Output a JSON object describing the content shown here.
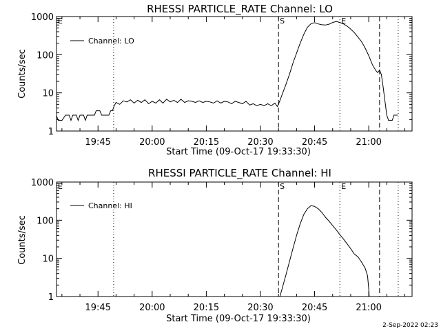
{
  "stamp": "2-Sep-2022 02:23",
  "chart_data": [
    {
      "type": "line",
      "title": "RHESSI PARTICLE_RATE Channel: LO",
      "xlabel": "Start Time (09-Oct-17 19:33:30)",
      "ylabel": "Counts/sec",
      "yscale": "log",
      "ylim": [
        1,
        1000
      ],
      "xlim": [
        "19:33:30",
        "21:12:00"
      ],
      "x_ticks": [
        "19:45",
        "20:00",
        "20:15",
        "20:30",
        "20:45",
        "21:00"
      ],
      "y_ticks": [
        "1",
        "10",
        "100",
        "1000"
      ],
      "legend": "top-left",
      "line_color": "#000000",
      "markers": [
        {
          "time": "19:33:30",
          "label": "E",
          "style": "dotted"
        },
        {
          "time": "19:49:20",
          "label": "",
          "style": "dotted"
        },
        {
          "time": "20:35:00",
          "label": "S",
          "style": "dashed"
        },
        {
          "time": "20:52:00",
          "label": "E",
          "style": "dotted"
        },
        {
          "time": "21:03:00",
          "label": "",
          "style": "dashed"
        },
        {
          "time": "21:08:10",
          "label": "",
          "style": "dotted"
        }
      ],
      "series": [
        {
          "name": "Channel: LO",
          "points": [
            [
              "19:33:30",
              2.5
            ],
            [
              "19:34:00",
              1.9
            ],
            [
              "19:35:00",
              1.9
            ],
            [
              "19:36:00",
              2.6
            ],
            [
              "19:37:00",
              2.6
            ],
            [
              "19:37:30",
              1.9
            ],
            [
              "19:38:00",
              2.6
            ],
            [
              "19:39:00",
              2.6
            ],
            [
              "19:39:30",
              1.9
            ],
            [
              "19:40:00",
              2.6
            ],
            [
              "19:41:00",
              2.6
            ],
            [
              "19:41:30",
              1.9
            ],
            [
              "19:42:00",
              2.6
            ],
            [
              "19:43:00",
              2.6
            ],
            [
              "19:44:00",
              2.6
            ],
            [
              "19:44:30",
              3.4
            ],
            [
              "19:45:30",
              3.4
            ],
            [
              "19:46:00",
              2.6
            ],
            [
              "19:47:00",
              2.6
            ],
            [
              "19:48:00",
              2.6
            ],
            [
              "19:48:30",
              3.4
            ],
            [
              "19:49:00",
              3.4
            ],
            [
              "19:49:30",
              4.6
            ],
            [
              "19:50:00",
              5.6
            ],
            [
              "19:51:00",
              5.0
            ],
            [
              "19:52:00",
              6.2
            ],
            [
              "19:53:00",
              5.8
            ],
            [
              "19:54:00",
              6.6
            ],
            [
              "19:55:00",
              5.4
            ],
            [
              "19:56:00",
              6.4
            ],
            [
              "19:57:00",
              5.6
            ],
            [
              "19:58:00",
              6.6
            ],
            [
              "19:59:00",
              5.2
            ],
            [
              "20:00:00",
              6.0
            ],
            [
              "20:01:00",
              5.4
            ],
            [
              "20:02:00",
              6.6
            ],
            [
              "20:03:00",
              5.4
            ],
            [
              "20:04:00",
              6.8
            ],
            [
              "20:05:00",
              5.8
            ],
            [
              "20:06:00",
              6.4
            ],
            [
              "20:07:00",
              5.6
            ],
            [
              "20:08:00",
              6.8
            ],
            [
              "20:09:00",
              5.6
            ],
            [
              "20:10:00",
              6.2
            ],
            [
              "20:11:00",
              6.0
            ],
            [
              "20:12:00",
              5.6
            ],
            [
              "20:13:00",
              6.2
            ],
            [
              "20:14:00",
              5.6
            ],
            [
              "20:15:00",
              6.0
            ],
            [
              "20:16:00",
              5.8
            ],
            [
              "20:17:00",
              5.4
            ],
            [
              "20:18:00",
              6.2
            ],
            [
              "20:19:00",
              5.4
            ],
            [
              "20:20:00",
              6.0
            ],
            [
              "20:21:00",
              5.8
            ],
            [
              "20:22:00",
              5.2
            ],
            [
              "20:23:00",
              6.0
            ],
            [
              "20:24:00",
              5.6
            ],
            [
              "20:25:00",
              5.2
            ],
            [
              "20:26:00",
              6.0
            ],
            [
              "20:27:00",
              4.8
            ],
            [
              "20:28:00",
              5.2
            ],
            [
              "20:29:00",
              4.6
            ],
            [
              "20:30:00",
              5.0
            ],
            [
              "20:31:00",
              4.6
            ],
            [
              "20:32:00",
              5.2
            ],
            [
              "20:33:00",
              4.6
            ],
            [
              "20:34:00",
              5.4
            ],
            [
              "20:34:40",
              4.4
            ],
            [
              "20:35:00",
              5.0
            ],
            [
              "20:36:00",
              9.0
            ],
            [
              "20:37:00",
              16
            ],
            [
              "20:38:00",
              30
            ],
            [
              "20:39:00",
              60
            ],
            [
              "20:40:00",
              110
            ],
            [
              "20:41:00",
              200
            ],
            [
              "20:42:00",
              340
            ],
            [
              "20:43:00",
              520
            ],
            [
              "20:44:00",
              650
            ],
            [
              "20:45:00",
              690
            ],
            [
              "20:46:00",
              640
            ],
            [
              "20:47:00",
              610
            ],
            [
              "20:48:00",
              600
            ],
            [
              "20:49:00",
              630
            ],
            [
              "20:50:00",
              700
            ],
            [
              "20:51:00",
              740
            ],
            [
              "20:52:00",
              700
            ],
            [
              "20:53:00",
              640
            ],
            [
              "20:54:00",
              560
            ],
            [
              "20:55:00",
              470
            ],
            [
              "20:56:00",
              380
            ],
            [
              "20:57:00",
              290
            ],
            [
              "20:58:00",
              220
            ],
            [
              "20:59:00",
              150
            ],
            [
              "21:00:00",
              95
            ],
            [
              "21:01:00",
              55
            ],
            [
              "21:02:00",
              38
            ],
            [
              "21:02:30",
              34
            ],
            [
              "21:03:00",
              40
            ],
            [
              "21:03:30",
              30
            ],
            [
              "21:04:00",
              14
            ],
            [
              "21:04:30",
              6
            ],
            [
              "21:05:00",
              2.6
            ],
            [
              "21:05:30",
              1.9
            ],
            [
              "21:06:30",
              1.9
            ],
            [
              "21:07:00",
              2.6
            ],
            [
              "21:08:00",
              2.6
            ]
          ]
        }
      ]
    },
    {
      "type": "line",
      "title": "RHESSI PARTICLE_RATE Channel: HI",
      "xlabel": "Start Time (09-Oct-17 19:33:30)",
      "ylabel": "Counts/sec",
      "yscale": "log",
      "ylim": [
        1,
        1000
      ],
      "xlim": [
        "19:33:30",
        "21:12:00"
      ],
      "x_ticks": [
        "19:45",
        "20:00",
        "20:15",
        "20:30",
        "20:45",
        "21:00"
      ],
      "y_ticks": [
        "1",
        "10",
        "100",
        "1000"
      ],
      "legend": "top-left",
      "line_color": "#000000",
      "markers": [
        {
          "time": "19:33:30",
          "label": "E",
          "style": "dotted"
        },
        {
          "time": "19:49:20",
          "label": "",
          "style": "dotted"
        },
        {
          "time": "20:35:00",
          "label": "S",
          "style": "dashed"
        },
        {
          "time": "20:52:00",
          "label": "E",
          "style": "dotted"
        },
        {
          "time": "21:03:00",
          "label": "",
          "style": "dashed"
        },
        {
          "time": "21:08:10",
          "label": "",
          "style": "dotted"
        }
      ],
      "series": [
        {
          "name": "Channel: HI",
          "points": [
            [
              "20:35:15",
              0.9
            ],
            [
              "20:36:00",
              1.6
            ],
            [
              "20:37:00",
              3.5
            ],
            [
              "20:38:00",
              8
            ],
            [
              "20:39:00",
              18
            ],
            [
              "20:40:00",
              40
            ],
            [
              "20:41:00",
              80
            ],
            [
              "20:42:00",
              140
            ],
            [
              "20:43:00",
              200
            ],
            [
              "20:44:00",
              240
            ],
            [
              "20:45:00",
              230
            ],
            [
              "20:46:00",
              200
            ],
            [
              "20:47:00",
              160
            ],
            [
              "20:48:00",
              120
            ],
            [
              "20:49:00",
              95
            ],
            [
              "20:50:00",
              72
            ],
            [
              "20:51:00",
              56
            ],
            [
              "20:52:00",
              42
            ],
            [
              "20:53:00",
              32
            ],
            [
              "20:54:00",
              24
            ],
            [
              "20:55:00",
              18
            ],
            [
              "20:56:00",
              13
            ],
            [
              "20:57:00",
              11
            ],
            [
              "20:58:00",
              8
            ],
            [
              "20:59:00",
              5.5
            ],
            [
              "20:59:40",
              3.5
            ],
            [
              "21:00:00",
              1.6
            ],
            [
              "21:00:10",
              0.9
            ]
          ]
        }
      ]
    }
  ]
}
